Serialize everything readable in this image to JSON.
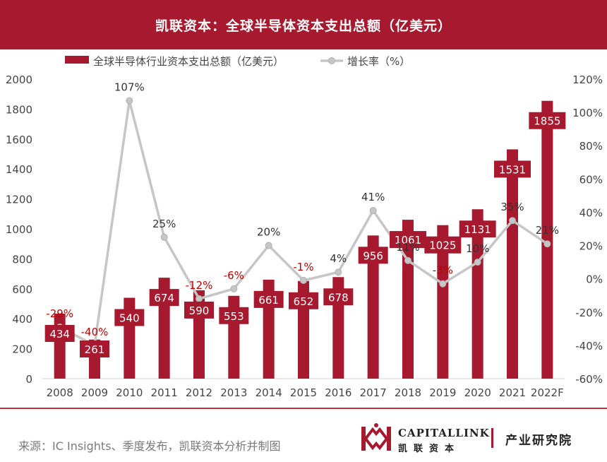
{
  "header": {
    "title": "凯联资本：全球半导体资本支出总额（亿美元）"
  },
  "chart_data": {
    "type": "bar",
    "categories": [
      "2008",
      "2009",
      "2010",
      "2011",
      "2012",
      "2013",
      "2014",
      "2015",
      "2016",
      "2017",
      "2018",
      "2019",
      "2020",
      "2021",
      "2022F"
    ],
    "series": [
      {
        "name": "全球半导体行业资本支出总额（亿美元）",
        "type": "bar",
        "axis": "left",
        "values": [
          434,
          261,
          540,
          674,
          590,
          553,
          661,
          652,
          678,
          956,
          1061,
          1025,
          1131,
          1531,
          1855
        ],
        "labels": [
          "434",
          "261",
          "540",
          "674",
          "590",
          "553",
          "661",
          "652",
          "678",
          "956",
          "1061",
          "1025",
          "1131",
          "1531",
          "1855"
        ]
      },
      {
        "name": "增长率（%）",
        "type": "line",
        "axis": "right",
        "values": [
          -29,
          -40,
          107,
          25,
          -12,
          -6,
          20,
          -1,
          4,
          41,
          11,
          -3,
          10,
          35,
          21
        ],
        "labels": [
          "-29%",
          "-40%",
          "107%",
          "25%",
          "-12%",
          "-6%",
          "20%",
          "-1%",
          "4%",
          "41%",
          "11%",
          "-3%",
          "10%",
          "35%",
          "21%"
        ]
      }
    ],
    "y_left": {
      "min": 0,
      "max": 2000,
      "ticks": [
        "0",
        "200",
        "400",
        "600",
        "800",
        "1000",
        "1200",
        "1400",
        "1600",
        "1800",
        "2000"
      ]
    },
    "y_right": {
      "min": -60,
      "max": 120,
      "ticks": [
        "-60%",
        "-40%",
        "-20%",
        "0%",
        "20%",
        "40%",
        "60%",
        "80%",
        "100%",
        "120%"
      ]
    },
    "grid": false,
    "legend": "top-left",
    "colors": {
      "bar": "#a6192e",
      "line": "#c6c6c6",
      "negative_label": "#c00000",
      "positive_label": "#333333"
    }
  },
  "footer": {
    "source": "来源：IC Insights、季度发布，凯联资本分析并制图",
    "logo_en": "CAPITALLINK",
    "logo_cn": "凯联资本",
    "logo_tagline": "产业研究院"
  }
}
